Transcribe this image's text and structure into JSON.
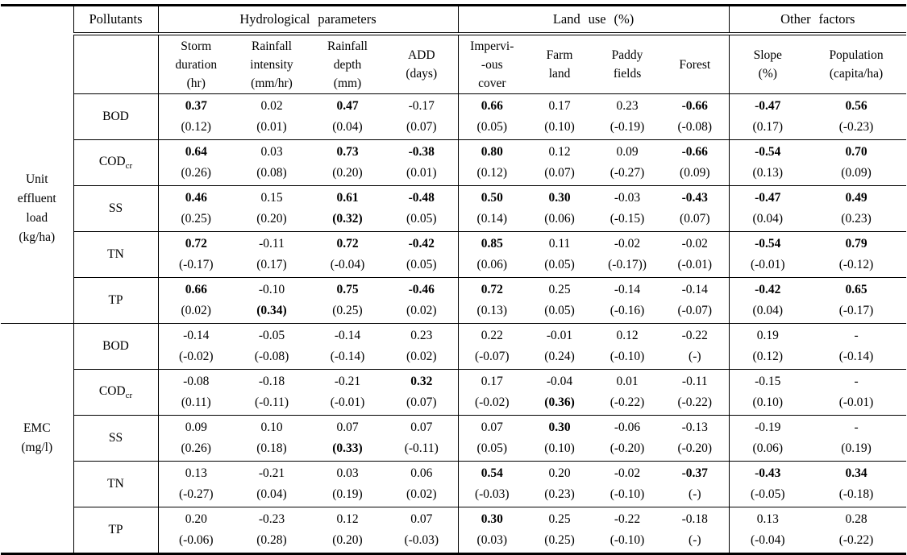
{
  "page": {
    "background": "#ffffff",
    "text_color": "#000000",
    "border_color": "#000000"
  },
  "table": {
    "header": {
      "pollutants_label": "Pollutants",
      "groups": [
        {
          "label": "Hydrological parameters",
          "span": 4
        },
        {
          "label": "Land use (%)",
          "span": 4
        },
        {
          "label": "Other factors",
          "span": 2
        }
      ],
      "columns": [
        {
          "lines": [
            "Storm",
            "duration",
            "(hr)"
          ]
        },
        {
          "lines": [
            "Rainfall",
            "intensity",
            "(mm/hr)"
          ]
        },
        {
          "lines": [
            "Rainfall",
            "depth",
            "(mm)"
          ]
        },
        {
          "lines": [
            "ADD",
            "(days)"
          ]
        },
        {
          "lines": [
            "Impervi-",
            "-ous",
            "cover"
          ]
        },
        {
          "lines": [
            "Farm",
            "land"
          ]
        },
        {
          "lines": [
            "Paddy",
            "fields"
          ]
        },
        {
          "lines": [
            "Forest"
          ]
        },
        {
          "lines": [
            "Slope",
            "(%)"
          ]
        },
        {
          "lines": [
            "Population",
            "(capita/ha)"
          ]
        }
      ]
    },
    "row_groups": [
      {
        "label_lines": [
          "Unit",
          "effluent",
          "load",
          "(kg/ha)"
        ],
        "rows": [
          {
            "pollutant": "BOD",
            "pollutant_sub": "",
            "values": [
              {
                "v": "0.37",
                "vb": 1,
                "p": "(0.12)",
                "pb": 0
              },
              {
                "v": "0.02",
                "vb": 0,
                "p": "(0.01)",
                "pb": 0
              },
              {
                "v": "0.47",
                "vb": 1,
                "p": "(0.04)",
                "pb": 0
              },
              {
                "v": "-0.17",
                "vb": 0,
                "p": "(0.07)",
                "pb": 0
              },
              {
                "v": "0.66",
                "vb": 1,
                "p": "(0.05)",
                "pb": 0
              },
              {
                "v": "0.17",
                "vb": 0,
                "p": "(0.10)",
                "pb": 0
              },
              {
                "v": "0.23",
                "vb": 0,
                "p": "(-0.19)",
                "pb": 0
              },
              {
                "v": "-0.66",
                "vb": 1,
                "p": "(-0.08)",
                "pb": 0
              },
              {
                "v": "-0.47",
                "vb": 1,
                "p": "(0.17)",
                "pb": 0
              },
              {
                "v": "0.56",
                "vb": 1,
                "p": "(-0.23)",
                "pb": 0
              }
            ]
          },
          {
            "pollutant": "COD",
            "pollutant_sub": "cr",
            "values": [
              {
                "v": "0.64",
                "vb": 1,
                "p": "(0.26)",
                "pb": 0
              },
              {
                "v": "0.03",
                "vb": 0,
                "p": "(0.08)",
                "pb": 0
              },
              {
                "v": "0.73",
                "vb": 1,
                "p": "(0.20)",
                "pb": 0
              },
              {
                "v": "-0.38",
                "vb": 1,
                "p": "(0.01)",
                "pb": 0
              },
              {
                "v": "0.80",
                "vb": 1,
                "p": "(0.12)",
                "pb": 0
              },
              {
                "v": "0.12",
                "vb": 0,
                "p": "(0.07)",
                "pb": 0
              },
              {
                "v": "0.09",
                "vb": 0,
                "p": "(-0.27)",
                "pb": 0
              },
              {
                "v": "-0.66",
                "vb": 1,
                "p": "(0.09)",
                "pb": 0
              },
              {
                "v": "-0.54",
                "vb": 1,
                "p": "(0.13)",
                "pb": 0
              },
              {
                "v": "0.70",
                "vb": 1,
                "p": "(0.09)",
                "pb": 0
              }
            ]
          },
          {
            "pollutant": "SS",
            "pollutant_sub": "",
            "values": [
              {
                "v": "0.46",
                "vb": 1,
                "p": "(0.25)",
                "pb": 0
              },
              {
                "v": "0.15",
                "vb": 0,
                "p": "(0.20)",
                "pb": 0
              },
              {
                "v": "0.61",
                "vb": 1,
                "p": "(0.32)",
                "pb": 1
              },
              {
                "v": "-0.48",
                "vb": 1,
                "p": "(0.05)",
                "pb": 0
              },
              {
                "v": "0.50",
                "vb": 1,
                "p": "(0.14)",
                "pb": 0
              },
              {
                "v": "0.30",
                "vb": 1,
                "p": "(0.06)",
                "pb": 0
              },
              {
                "v": "-0.03",
                "vb": 0,
                "p": "(-0.15)",
                "pb": 0
              },
              {
                "v": "-0.43",
                "vb": 1,
                "p": "(0.07)",
                "pb": 0
              },
              {
                "v": "-0.47",
                "vb": 1,
                "p": "(0.04)",
                "pb": 0
              },
              {
                "v": "0.49",
                "vb": 1,
                "p": "(0.23)",
                "pb": 0
              }
            ]
          },
          {
            "pollutant": "TN",
            "pollutant_sub": "",
            "values": [
              {
                "v": "0.72",
                "vb": 1,
                "p": "(-0.17)",
                "pb": 0
              },
              {
                "v": "-0.11",
                "vb": 0,
                "p": "(0.17)",
                "pb": 0
              },
              {
                "v": "0.72",
                "vb": 1,
                "p": "(-0.04)",
                "pb": 0
              },
              {
                "v": "-0.42",
                "vb": 1,
                "p": "(0.05)",
                "pb": 0
              },
              {
                "v": "0.85",
                "vb": 1,
                "p": "(0.06)",
                "pb": 0
              },
              {
                "v": "0.11",
                "vb": 0,
                "p": "(0.05)",
                "pb": 0
              },
              {
                "v": "-0.02",
                "vb": 0,
                "p": "(-0.17))",
                "pb": 0
              },
              {
                "v": "-0.02",
                "vb": 0,
                "p": "(-0.01)",
                "pb": 0
              },
              {
                "v": "-0.54",
                "vb": 1,
                "p": "(-0.01)",
                "pb": 0
              },
              {
                "v": "0.79",
                "vb": 1,
                "p": "(-0.12)",
                "pb": 0
              }
            ]
          },
          {
            "pollutant": "TP",
            "pollutant_sub": "",
            "values": [
              {
                "v": "0.66",
                "vb": 1,
                "p": "(0.02)",
                "pb": 0
              },
              {
                "v": "-0.10",
                "vb": 0,
                "p": "(0.34)",
                "pb": 1
              },
              {
                "v": "0.75",
                "vb": 1,
                "p": "(0.25)",
                "pb": 0
              },
              {
                "v": "-0.46",
                "vb": 1,
                "p": "(0.02)",
                "pb": 0
              },
              {
                "v": "0.72",
                "vb": 1,
                "p": "(0.13)",
                "pb": 0
              },
              {
                "v": "0.25",
                "vb": 0,
                "p": "(0.05)",
                "pb": 0
              },
              {
                "v": "-0.14",
                "vb": 0,
                "p": "(-0.16)",
                "pb": 0
              },
              {
                "v": "-0.14",
                "vb": 0,
                "p": "(-0.07)",
                "pb": 0
              },
              {
                "v": "-0.42",
                "vb": 1,
                "p": "(0.04)",
                "pb": 0
              },
              {
                "v": "0.65",
                "vb": 1,
                "p": "(-0.17)",
                "pb": 0
              }
            ]
          }
        ]
      },
      {
        "label_lines": [
          "EMC",
          "(mg/l)"
        ],
        "rows": [
          {
            "pollutant": "BOD",
            "pollutant_sub": "",
            "values": [
              {
                "v": "-0.14",
                "vb": 0,
                "p": "(-0.02)",
                "pb": 0
              },
              {
                "v": "-0.05",
                "vb": 0,
                "p": "(-0.08)",
                "pb": 0
              },
              {
                "v": "-0.14",
                "vb": 0,
                "p": "(-0.14)",
                "pb": 0
              },
              {
                "v": "0.23",
                "vb": 0,
                "p": "(0.02)",
                "pb": 0
              },
              {
                "v": "0.22",
                "vb": 0,
                "p": "(-0.07)",
                "pb": 0
              },
              {
                "v": "-0.01",
                "vb": 0,
                "p": "(0.24)",
                "pb": 0
              },
              {
                "v": "0.12",
                "vb": 0,
                "p": "(-0.10)",
                "pb": 0
              },
              {
                "v": "-0.22",
                "vb": 0,
                "p": "(-)",
                "pb": 0
              },
              {
                "v": "0.19",
                "vb": 0,
                "p": "(0.12)",
                "pb": 0
              },
              {
                "v": "-",
                "vb": 0,
                "p": "(-0.14)",
                "pb": 0
              }
            ]
          },
          {
            "pollutant": "COD",
            "pollutant_sub": "cr",
            "values": [
              {
                "v": "-0.08",
                "vb": 0,
                "p": "(0.11)",
                "pb": 0
              },
              {
                "v": "-0.18",
                "vb": 0,
                "p": "(-0.11)",
                "pb": 0
              },
              {
                "v": "-0.21",
                "vb": 0,
                "p": "(-0.01)",
                "pb": 0
              },
              {
                "v": "0.32",
                "vb": 1,
                "p": "(0.07)",
                "pb": 0
              },
              {
                "v": "0.17",
                "vb": 0,
                "p": "(-0.02)",
                "pb": 0
              },
              {
                "v": "-0.04",
                "vb": 0,
                "p": "(0.36)",
                "pb": 1
              },
              {
                "v": "0.01",
                "vb": 0,
                "p": "(-0.22)",
                "pb": 0
              },
              {
                "v": "-0.11",
                "vb": 0,
                "p": "(-0.22)",
                "pb": 0
              },
              {
                "v": "-0.15",
                "vb": 0,
                "p": "(0.10)",
                "pb": 0
              },
              {
                "v": "-",
                "vb": 0,
                "p": "(-0.01)",
                "pb": 0
              }
            ]
          },
          {
            "pollutant": "SS",
            "pollutant_sub": "",
            "values": [
              {
                "v": "0.09",
                "vb": 0,
                "p": "(0.26)",
                "pb": 0
              },
              {
                "v": "0.10",
                "vb": 0,
                "p": "(0.18)",
                "pb": 0
              },
              {
                "v": "0.07",
                "vb": 0,
                "p": "(0.33)",
                "pb": 1
              },
              {
                "v": "0.07",
                "vb": 0,
                "p": "(-0.11)",
                "pb": 0
              },
              {
                "v": "0.07",
                "vb": 0,
                "p": "(0.05)",
                "pb": 0
              },
              {
                "v": "0.30",
                "vb": 1,
                "p": "(0.10)",
                "pb": 0
              },
              {
                "v": "-0.06",
                "vb": 0,
                "p": "(-0.20)",
                "pb": 0
              },
              {
                "v": "-0.13",
                "vb": 0,
                "p": "(-0.20)",
                "pb": 0
              },
              {
                "v": "-0.19",
                "vb": 0,
                "p": "(0.06)",
                "pb": 0
              },
              {
                "v": "-",
                "vb": 0,
                "p": "(0.19)",
                "pb": 0
              }
            ]
          },
          {
            "pollutant": "TN",
            "pollutant_sub": "",
            "values": [
              {
                "v": "0.13",
                "vb": 0,
                "p": "(-0.27)",
                "pb": 0
              },
              {
                "v": "-0.21",
                "vb": 0,
                "p": "(0.04)",
                "pb": 0
              },
              {
                "v": "0.03",
                "vb": 0,
                "p": "(0.19)",
                "pb": 0
              },
              {
                "v": "0.06",
                "vb": 0,
                "p": "(0.02)",
                "pb": 0
              },
              {
                "v": "0.54",
                "vb": 1,
                "p": "(-0.03)",
                "pb": 0
              },
              {
                "v": "0.20",
                "vb": 0,
                "p": "(0.23)",
                "pb": 0
              },
              {
                "v": "-0.02",
                "vb": 0,
                "p": "(-0.10)",
                "pb": 0
              },
              {
                "v": "-0.37",
                "vb": 1,
                "p": "(-)",
                "pb": 0
              },
              {
                "v": "-0.43",
                "vb": 1,
                "p": "(-0.05)",
                "pb": 0
              },
              {
                "v": "0.34",
                "vb": 1,
                "p": "(-0.18)",
                "pb": 0
              }
            ]
          },
          {
            "pollutant": "TP",
            "pollutant_sub": "",
            "values": [
              {
                "v": "0.20",
                "vb": 0,
                "p": "(-0.06)",
                "pb": 0
              },
              {
                "v": "-0.23",
                "vb": 0,
                "p": "(0.28)",
                "pb": 0
              },
              {
                "v": "0.12",
                "vb": 0,
                "p": "(0.20)",
                "pb": 0
              },
              {
                "v": "0.07",
                "vb": 0,
                "p": "(-0.03)",
                "pb": 0
              },
              {
                "v": "0.30",
                "vb": 1,
                "p": "(0.03)",
                "pb": 0
              },
              {
                "v": "0.25",
                "vb": 0,
                "p": "(0.25)",
                "pb": 0
              },
              {
                "v": "-0.22",
                "vb": 0,
                "p": "(-0.10)",
                "pb": 0
              },
              {
                "v": "-0.18",
                "vb": 0,
                "p": "(-)",
                "pb": 0
              },
              {
                "v": "0.13",
                "vb": 0,
                "p": "(-0.04)",
                "pb": 0
              },
              {
                "v": "0.28",
                "vb": 0,
                "p": "(-0.22)",
                "pb": 0
              }
            ]
          }
        ]
      }
    ]
  }
}
